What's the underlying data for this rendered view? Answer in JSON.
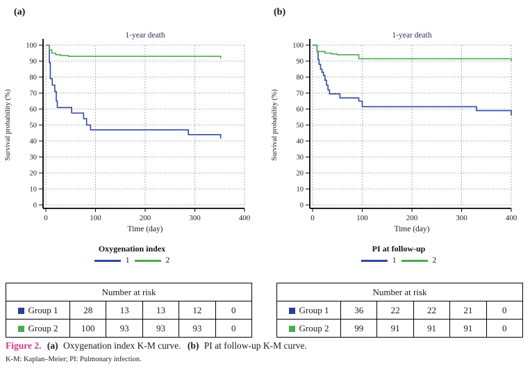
{
  "panels": [
    {
      "label": "(a)"
    },
    {
      "label": "(b)"
    }
  ],
  "chart_data": [
    {
      "type": "line",
      "panel": "a",
      "title": "1-year death",
      "xlabel": "Time (day)",
      "ylabel": "Survival probability (%)",
      "xlim": [
        0,
        400
      ],
      "ylim": [
        0,
        100
      ],
      "xticks": [
        0,
        100,
        200,
        300,
        400
      ],
      "yticks": [
        0,
        10,
        20,
        30,
        40,
        50,
        60,
        70,
        80,
        90,
        100
      ],
      "grid": "dashed",
      "step": true,
      "legend_title": "Oxygenation index",
      "legend_position": "bottom",
      "series": [
        {
          "name": "1",
          "color": "#33479c",
          "t": [
            0,
            7,
            9,
            13,
            18,
            21,
            23,
            52,
            76,
            82,
            90,
            287,
            352
          ],
          "v": [
            100,
            89,
            79,
            75,
            71,
            65,
            61,
            57.5,
            54,
            50,
            47,
            44,
            41.5
          ]
        },
        {
          "name": "2",
          "color": "#4aab4d",
          "t": [
            0,
            7,
            12,
            20,
            30,
            45,
            352
          ],
          "v": [
            100,
            97,
            95,
            94,
            93.5,
            93,
            91.5
          ]
        }
      ],
      "risk_table": {
        "header": "Number at risk",
        "rows": [
          {
            "label": "Group 1",
            "color": "#2a3f97",
            "counts": [
              28,
              13,
              13,
              12,
              0
            ]
          },
          {
            "label": "Group 2",
            "color": "#4aab4d",
            "counts": [
              100,
              93,
              93,
              93,
              0
            ]
          }
        ]
      }
    },
    {
      "type": "line",
      "panel": "b",
      "title": "1-year death",
      "xlabel": "Time (day)",
      "ylabel": "Survival probability (%)",
      "xlim": [
        0,
        400
      ],
      "ylim": [
        0,
        100
      ],
      "xticks": [
        0,
        100,
        200,
        300,
        400
      ],
      "yticks": [
        0,
        10,
        20,
        30,
        40,
        50,
        60,
        70,
        80,
        90,
        100
      ],
      "grid": "dashed",
      "step": true,
      "legend_title": "PI at follow-up",
      "legend_position": "bottom",
      "series": [
        {
          "name": "1",
          "color": "#33479c",
          "t": [
            0,
            9,
            11,
            13,
            16,
            19,
            22,
            25,
            28,
            31,
            34,
            55,
            93,
            100,
            330,
            400
          ],
          "v": [
            100,
            96,
            91,
            88,
            85,
            83,
            81,
            78,
            75,
            72,
            69.5,
            67,
            65,
            61.5,
            59,
            56
          ]
        },
        {
          "name": "2",
          "color": "#4aab4d",
          "t": [
            0,
            9,
            25,
            38,
            50,
            93,
            400
          ],
          "v": [
            100,
            96,
            95,
            94.5,
            94,
            91.5,
            90
          ]
        }
      ],
      "risk_table": {
        "header": "Number at risk",
        "rows": [
          {
            "label": "Group 1",
            "color": "#2a3f97",
            "counts": [
              36,
              22,
              22,
              21,
              0
            ]
          },
          {
            "label": "Group 2",
            "color": "#4aab4d",
            "counts": [
              99,
              91,
              91,
              91,
              0
            ]
          }
        ]
      }
    }
  ],
  "caption": {
    "prefix": "Figure 2.",
    "part_a_label": "(a)",
    "part_a_text": "Oxygenation index K-M curve.",
    "part_b_label": "(b)",
    "part_b_text": "PI at follow-up K-M curve.",
    "footnote": "K-M: Kaplan–Meier; PI: Pulmonary infection.",
    "accent_color": "#d1388a"
  }
}
